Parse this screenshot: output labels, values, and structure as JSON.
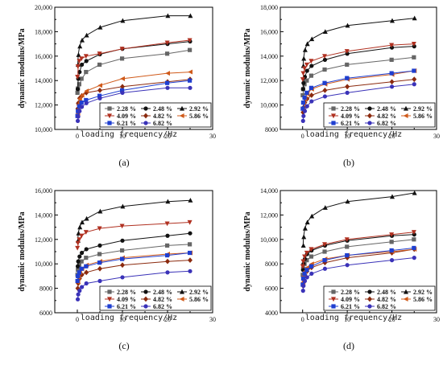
{
  "chart_data": [
    {
      "type": "line",
      "panel_label": "(a)",
      "xlabel": "loading frequency/Hz",
      "ylabel": "dynamic modulus/MPa",
      "xlim": [
        -5,
        30
      ],
      "ylim": [
        10000,
        20000
      ],
      "xticks": [
        0,
        10,
        20,
        30
      ],
      "yticks": [
        10000,
        12000,
        14000,
        16000,
        18000,
        20000
      ],
      "ytick_labels": [
        "10,000",
        "12,000",
        "14,000",
        "16,000",
        "18,000",
        "20,000"
      ],
      "x": [
        0.1,
        0.2,
        0.5,
        1,
        2,
        5,
        10,
        20,
        25
      ],
      "series": [
        {
          "name": "2.28 %",
          "color": "#666666",
          "marker": "square",
          "values": [
            13000,
            13350,
            13700,
            14150,
            14700,
            15300,
            15800,
            16200,
            16500
          ]
        },
        {
          "name": "2.48 %",
          "color": "#111111",
          "marker": "circle",
          "values": [
            13300,
            14150,
            14700,
            15300,
            15600,
            16150,
            16600,
            17000,
            17200
          ]
        },
        {
          "name": "2.92 %",
          "color": "#111111",
          "marker": "triangle-up",
          "values": [
            15300,
            16100,
            16800,
            17300,
            17700,
            18350,
            18900,
            19300,
            19300
          ]
        },
        {
          "name": "4.09 %",
          "color": "#b03020",
          "marker": "triangle-down",
          "values": [
            14300,
            15150,
            15600,
            15800,
            16000,
            16200,
            16600,
            17100,
            17300
          ]
        },
        {
          "name": "4.82 %",
          "color": "#8b2a0e",
          "marker": "diamond",
          "values": [
            11700,
            12150,
            12550,
            12750,
            13000,
            13200,
            13500,
            13900,
            14100
          ]
        },
        {
          "name": "5.86 %",
          "color": "#d05a1a",
          "marker": "triangle-left",
          "values": [
            11300,
            12000,
            12500,
            12800,
            13150,
            13600,
            14150,
            14600,
            14700
          ]
        },
        {
          "name": "6.21 %",
          "color": "#1f3fd0",
          "marker": "square",
          "values": [
            11100,
            11500,
            11900,
            12200,
            12400,
            12750,
            13200,
            13800,
            14000
          ]
        },
        {
          "name": "6.82 %",
          "color": "#3a32b8",
          "marker": "circle",
          "values": [
            10700,
            11050,
            11500,
            11850,
            12150,
            12550,
            13000,
            13400,
            13400
          ]
        }
      ],
      "legend": "bottom-right"
    },
    {
      "type": "line",
      "panel_label": "(b)",
      "xlabel": "loading frequency/Hz",
      "ylabel": "dynamic modulus/MPa",
      "xlim": [
        -5,
        30
      ],
      "ylim": [
        8000,
        18000
      ],
      "xticks": [
        0,
        10,
        20,
        30
      ],
      "yticks": [
        8000,
        10000,
        12000,
        14000,
        16000,
        18000
      ],
      "ytick_labels": [
        "8000",
        "10,000",
        "12,000",
        "14,000",
        "16,000",
        "18,000"
      ],
      "x": [
        0.1,
        0.2,
        0.5,
        1,
        2,
        5,
        10,
        20,
        25
      ],
      "series": [
        {
          "name": "2.28 %",
          "color": "#666666",
          "marker": "square",
          "values": [
            10800,
            11300,
            11700,
            12000,
            12400,
            12900,
            13300,
            13700,
            13900
          ]
        },
        {
          "name": "2.48 %",
          "color": "#111111",
          "marker": "circle",
          "values": [
            11300,
            11800,
            12300,
            12800,
            13200,
            13700,
            14200,
            14700,
            14800
          ]
        },
        {
          "name": "2.92 %",
          "color": "#111111",
          "marker": "triangle-up",
          "values": [
            13200,
            13800,
            14500,
            15000,
            15400,
            16000,
            16500,
            16900,
            17100
          ]
        },
        {
          "name": "4.09 %",
          "color": "#b03020",
          "marker": "triangle-down",
          "values": [
            12100,
            12600,
            13000,
            13300,
            13600,
            14000,
            14400,
            14900,
            15000
          ]
        },
        {
          "name": "4.82 %",
          "color": "#8b2a0e",
          "marker": "diamond",
          "values": [
            9400,
            9800,
            10200,
            10500,
            10800,
            11200,
            11500,
            11900,
            12100
          ]
        },
        {
          "name": "5.86 %",
          "color": "#d05a1a",
          "marker": "triangle-left",
          "values": [
            9600,
            10100,
            10500,
            10900,
            11300,
            11700,
            12100,
            12500,
            12800
          ]
        },
        {
          "name": "6.21 %",
          "color": "#1f3fd0",
          "marker": "square",
          "values": [
            9700,
            10200,
            10600,
            11000,
            11400,
            11800,
            12200,
            12600,
            12800
          ]
        },
        {
          "name": "6.82 %",
          "color": "#3a32b8",
          "marker": "circle",
          "values": [
            8700,
            9100,
            9500,
            9900,
            10300,
            10700,
            11000,
            11500,
            11700
          ]
        }
      ],
      "legend": "bottom-right"
    },
    {
      "type": "line",
      "panel_label": "(c)",
      "xlabel": "loading frequency/Hz",
      "ylabel": "dynamic modulus/MPa",
      "xlim": [
        -5,
        30
      ],
      "ylim": [
        6000,
        16000
      ],
      "xticks": [
        0,
        10,
        20,
        30
      ],
      "yticks": [
        6000,
        8000,
        10000,
        12000,
        14000,
        16000
      ],
      "ytick_labels": [
        "6000",
        "8000",
        "10,000",
        "12,000",
        "14,000",
        "16,000"
      ],
      "x": [
        0.1,
        0.2,
        0.5,
        1,
        2,
        5,
        10,
        20,
        25
      ],
      "series": [
        {
          "name": "2.28 %",
          "color": "#666666",
          "marker": "square",
          "values": [
            9100,
            9500,
            9900,
            10200,
            10500,
            10800,
            11100,
            11500,
            11600
          ]
        },
        {
          "name": "2.48 %",
          "color": "#111111",
          "marker": "circle",
          "values": [
            9800,
            10200,
            10600,
            10900,
            11200,
            11500,
            11900,
            12300,
            12500
          ]
        },
        {
          "name": "2.92 %",
          "color": "#111111",
          "marker": "triangle-up",
          "values": [
            11900,
            12500,
            13000,
            13400,
            13700,
            14300,
            14700,
            15100,
            15200
          ]
        },
        {
          "name": "4.09 %",
          "color": "#b03020",
          "marker": "triangle-down",
          "values": [
            11300,
            11700,
            12000,
            12300,
            12600,
            12900,
            13100,
            13300,
            13400
          ]
        },
        {
          "name": "4.82 %",
          "color": "#8b2a0e",
          "marker": "diamond",
          "values": [
            8000,
            8400,
            8800,
            9100,
            9300,
            9600,
            9900,
            10200,
            10300
          ]
        },
        {
          "name": "5.86 %",
          "color": "#d05a1a",
          "marker": "triangle-left",
          "values": [
            8500,
            8900,
            9300,
            9600,
            9900,
            10200,
            10500,
            10800,
            10900
          ]
        },
        {
          "name": "6.21 %",
          "color": "#1f3fd0",
          "marker": "square",
          "values": [
            8600,
            9000,
            9300,
            9600,
            9800,
            10100,
            10400,
            10700,
            10900
          ]
        },
        {
          "name": "6.82 %",
          "color": "#3a32b8",
          "marker": "circle",
          "values": [
            7100,
            7500,
            7800,
            8100,
            8400,
            8600,
            8900,
            9300,
            9400
          ]
        }
      ],
      "legend": "bottom-right"
    },
    {
      "type": "line",
      "panel_label": "(d)",
      "xlabel": "loading frequency/Hz",
      "ylabel": "dynamic modulus/MPa",
      "xlim": [
        -5,
        30
      ],
      "ylim": [
        4000,
        14000
      ],
      "xticks": [
        0,
        10,
        20,
        30
      ],
      "yticks": [
        4000,
        6000,
        8000,
        10000,
        12000,
        14000
      ],
      "ytick_labels": [
        "4000",
        "6000",
        "8000",
        "10,000",
        "12,000",
        "14,000"
      ],
      "x": [
        0.1,
        0.2,
        0.5,
        1,
        2,
        5,
        10,
        20,
        25
      ],
      "series": [
        {
          "name": "2.28 %",
          "color": "#666666",
          "marker": "square",
          "values": [
            7100,
            7600,
            8000,
            8300,
            8600,
            9000,
            9400,
            9800,
            10000
          ]
        },
        {
          "name": "2.48 %",
          "color": "#111111",
          "marker": "circle",
          "values": [
            7500,
            8000,
            8400,
            8800,
            9100,
            9500,
            9900,
            10300,
            10400
          ]
        },
        {
          "name": "2.92 %",
          "color": "#111111",
          "marker": "triangle-up",
          "values": [
            9500,
            10200,
            10900,
            11400,
            11900,
            12600,
            13100,
            13500,
            13800
          ]
        },
        {
          "name": "4.09 %",
          "color": "#b03020",
          "marker": "triangle-down",
          "values": [
            7800,
            8200,
            8600,
            8900,
            9200,
            9600,
            10000,
            10400,
            10600
          ]
        },
        {
          "name": "4.82 %",
          "color": "#8b2a0e",
          "marker": "diamond",
          "values": [
            6200,
            6700,
            7100,
            7400,
            7700,
            8100,
            8500,
            8900,
            9200
          ]
        },
        {
          "name": "5.86 %",
          "color": "#d05a1a",
          "marker": "triangle-left",
          "values": [
            6500,
            7000,
            7400,
            7700,
            8000,
            8400,
            8700,
            9000,
            9200
          ]
        },
        {
          "name": "6.21 %",
          "color": "#1f3fd0",
          "marker": "square",
          "values": [
            6300,
            6800,
            7200,
            7500,
            7800,
            8300,
            8700,
            9100,
            9300
          ]
        },
        {
          "name": "6.82 %",
          "color": "#3a32b8",
          "marker": "circle",
          "values": [
            5800,
            6200,
            6600,
            6900,
            7200,
            7600,
            7900,
            8300,
            8500
          ]
        }
      ],
      "legend": "bottom-right"
    }
  ]
}
